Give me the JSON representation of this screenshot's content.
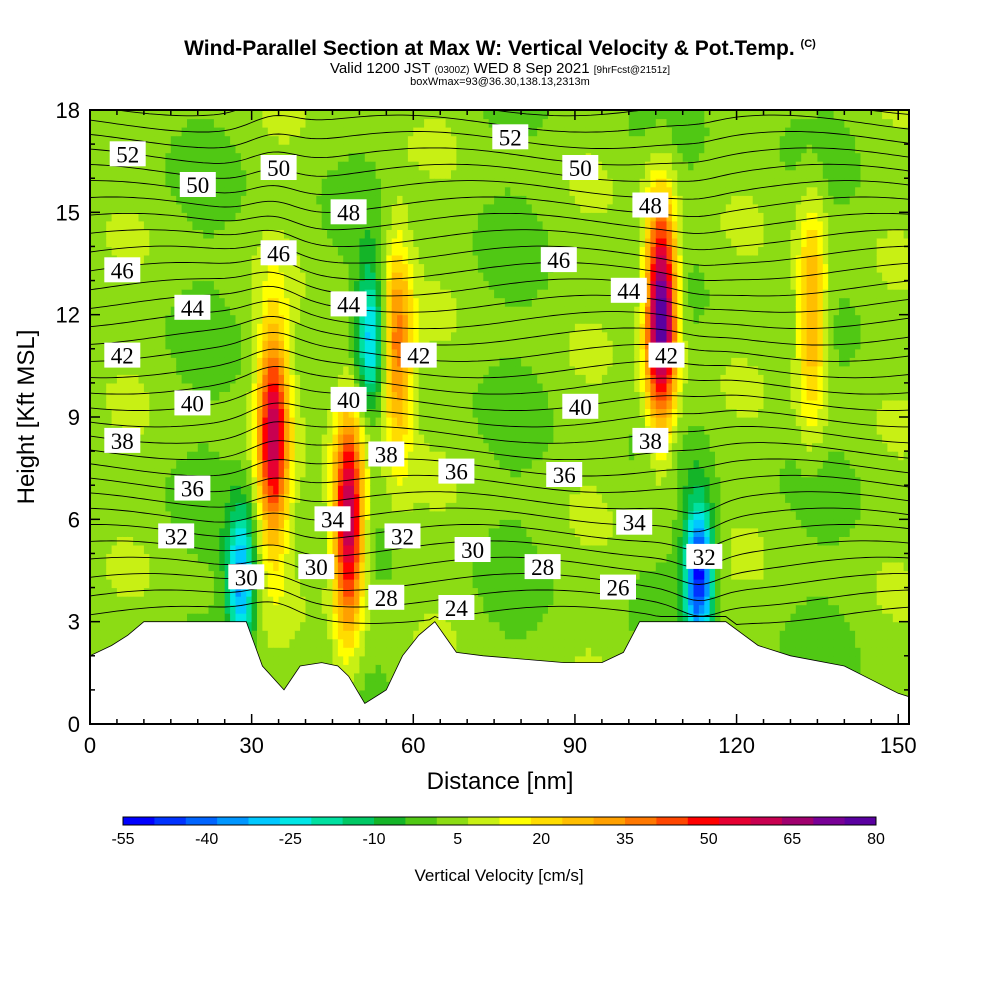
{
  "title": {
    "main": "Wind-Parallel Section at Max W: Vertical Velocity & Pot.Temp.",
    "copyright": "(C)",
    "valid_prefix": "Valid 1200 JST",
    "valid_utc": "(0300Z)",
    "valid_date": "WED 8 Sep 2021",
    "forecast": "[9hrFcst@2151z]",
    "box_info": "boxWmax=93@36.30,138.13,2313m"
  },
  "chart_data": {
    "type": "heatmap",
    "xlabel": "Distance [nm]",
    "ylabel": "Height [Kft MSL]",
    "xlim": [
      0,
      152
    ],
    "ylim": [
      0,
      18
    ],
    "x_ticks": [
      "0",
      "30",
      "60",
      "90",
      "120",
      "150"
    ],
    "y_ticks": [
      "0",
      "3",
      "6",
      "9",
      "12",
      "15",
      "18"
    ],
    "colorbar": {
      "title": "Vertical Velocity [cm/s]",
      "tick_labels": [
        "-55",
        "-40",
        "-25",
        "-10",
        "5",
        "20",
        "35",
        "50",
        "65",
        "80"
      ],
      "min": -55,
      "max": 80,
      "colors": [
        "#0000ff",
        "#0032ff",
        "#0064ff",
        "#0096ff",
        "#00c8ff",
        "#00e6e6",
        "#00e0a0",
        "#00c864",
        "#14b428",
        "#50c814",
        "#8cdc14",
        "#c8f014",
        "#ffff00",
        "#ffdc00",
        "#ffbe00",
        "#ffa000",
        "#ff7800",
        "#ff4600",
        "#ff0000",
        "#e60032",
        "#c80050",
        "#a0006e",
        "#780096",
        "#5a00a0"
      ]
    },
    "updrafts": [
      {
        "x": 34,
        "y": 8.5,
        "max": 55
      },
      {
        "x": 48,
        "y": 6.0,
        "max": 65
      },
      {
        "x": 106,
        "y": 12.0,
        "max": 80
      },
      {
        "x": 57,
        "y": 11.0,
        "max": 35
      },
      {
        "x": 134,
        "y": 12.0,
        "max": 30
      }
    ],
    "downdrafts": [
      {
        "x": 28,
        "y": 4.2,
        "min": -40
      },
      {
        "x": 52,
        "y": 11.5,
        "min": -30
      },
      {
        "x": 113,
        "y": 4.5,
        "min": -55
      }
    ],
    "terrain_profile": [
      [
        0,
        2
      ],
      [
        4,
        2.3
      ],
      [
        7,
        2.6
      ],
      [
        10,
        3
      ],
      [
        29,
        3
      ],
      [
        32,
        1.7
      ],
      [
        36,
        1.0
      ],
      [
        39,
        1.7
      ],
      [
        43,
        1.8
      ],
      [
        46,
        1.7
      ],
      [
        48,
        1.4
      ],
      [
        51,
        0.6
      ],
      [
        55,
        1.0
      ],
      [
        58,
        2.0
      ],
      [
        61,
        2.6
      ],
      [
        64,
        3
      ],
      [
        68,
        2.1
      ],
      [
        73,
        2.0
      ],
      [
        88,
        1.8
      ],
      [
        95,
        1.8
      ],
      [
        99,
        2.1
      ],
      [
        102,
        3
      ],
      [
        118,
        3
      ],
      [
        124,
        2.3
      ],
      [
        130,
        2.0
      ],
      [
        140,
        1.7
      ],
      [
        145,
        1.3
      ],
      [
        150,
        0.9
      ],
      [
        152,
        0.8
      ]
    ],
    "theta_contour_labels": [
      {
        "value": "52",
        "x": 7,
        "y": 16.7
      },
      {
        "value": "52",
        "x": 78,
        "y": 17.2
      },
      {
        "value": "50",
        "x": 20,
        "y": 15.8
      },
      {
        "value": "50",
        "x": 35,
        "y": 16.3
      },
      {
        "value": "50",
        "x": 91,
        "y": 16.3
      },
      {
        "value": "48",
        "x": 48,
        "y": 15.0
      },
      {
        "value": "48",
        "x": 104,
        "y": 15.2
      },
      {
        "value": "46",
        "x": 6,
        "y": 13.3
      },
      {
        "value": "46",
        "x": 35,
        "y": 13.8
      },
      {
        "value": "46",
        "x": 87,
        "y": 13.6
      },
      {
        "value": "44",
        "x": 19,
        "y": 12.2
      },
      {
        "value": "44",
        "x": 48,
        "y": 12.3
      },
      {
        "value": "44",
        "x": 100,
        "y": 12.7
      },
      {
        "value": "42",
        "x": 6,
        "y": 10.8
      },
      {
        "value": "42",
        "x": 61,
        "y": 10.8
      },
      {
        "value": "42",
        "x": 107,
        "y": 10.8
      },
      {
        "value": "40",
        "x": 19,
        "y": 9.4
      },
      {
        "value": "40",
        "x": 48,
        "y": 9.5
      },
      {
        "value": "40",
        "x": 91,
        "y": 9.3
      },
      {
        "value": "38",
        "x": 6,
        "y": 8.3
      },
      {
        "value": "38",
        "x": 55,
        "y": 7.9
      },
      {
        "value": "38",
        "x": 104,
        "y": 8.3
      },
      {
        "value": "36",
        "x": 19,
        "y": 6.9
      },
      {
        "value": "36",
        "x": 68,
        "y": 7.4
      },
      {
        "value": "36",
        "x": 88,
        "y": 7.3
      },
      {
        "value": "34",
        "x": 45,
        "y": 6.0
      },
      {
        "value": "34",
        "x": 101,
        "y": 5.9
      },
      {
        "value": "32",
        "x": 16,
        "y": 5.5
      },
      {
        "value": "32",
        "x": 58,
        "y": 5.5
      },
      {
        "value": "32",
        "x": 114,
        "y": 4.9
      },
      {
        "value": "30",
        "x": 29,
        "y": 4.3
      },
      {
        "value": "30",
        "x": 42,
        "y": 4.6
      },
      {
        "value": "30",
        "x": 71,
        "y": 5.1
      },
      {
        "value": "28",
        "x": 55,
        "y": 3.7
      },
      {
        "value": "28",
        "x": 84,
        "y": 4.6
      },
      {
        "value": "26",
        "x": 98,
        "y": 4.0
      },
      {
        "value": "24",
        "x": 68,
        "y": 3.4
      }
    ]
  }
}
